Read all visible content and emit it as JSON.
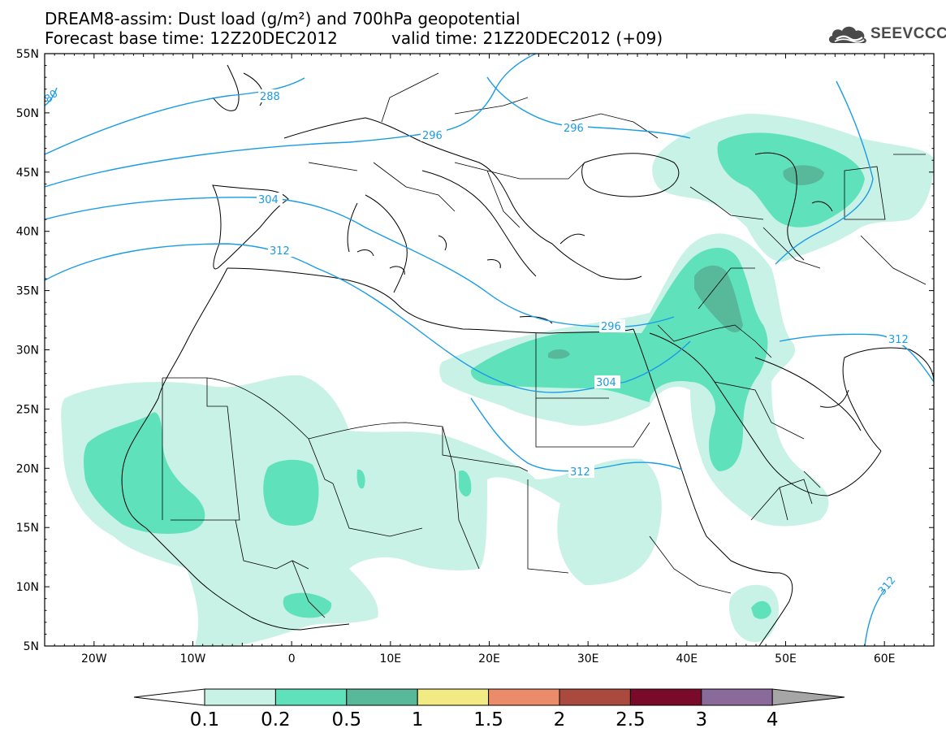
{
  "header": {
    "title_line1": "DREAM8-assim: Dust load (g/m²) and 700hPa geopotential",
    "base_time": "Forecast base time: 12Z20DEC2012",
    "valid_time": "valid time: 21Z20DEC2012 (+09)"
  },
  "logo": {
    "text": "SEEVCCC",
    "icon": "cloud-icon"
  },
  "axes": {
    "lat_labels": [
      "55N",
      "50N",
      "45N",
      "40N",
      "35N",
      "30N",
      "25N",
      "20N",
      "15N",
      "10N",
      "5N"
    ],
    "lon_labels": [
      "20W",
      "10W",
      "0",
      "10E",
      "20E",
      "30E",
      "40E",
      "50E",
      "60E"
    ]
  },
  "contour_labels": [
    "288",
    "296",
    "296",
    "304",
    "304",
    "312",
    "312",
    "312",
    "312",
    "80",
    "296"
  ],
  "colorbar": {
    "labels": [
      "0.1",
      "0.2",
      "0.5",
      "1",
      "1.5",
      "2",
      "2.5",
      "3",
      "4"
    ],
    "colors": [
      "#c9f2e6",
      "#5fe2bc",
      "#58b89a",
      "#f2ea82",
      "#ea8c6a",
      "#aa4a3e",
      "#7a0a2a",
      "#8a6a9a",
      "#a6a6a6"
    ]
  },
  "colors": {
    "contour": "#1a9be6",
    "coast": "#000000"
  }
}
